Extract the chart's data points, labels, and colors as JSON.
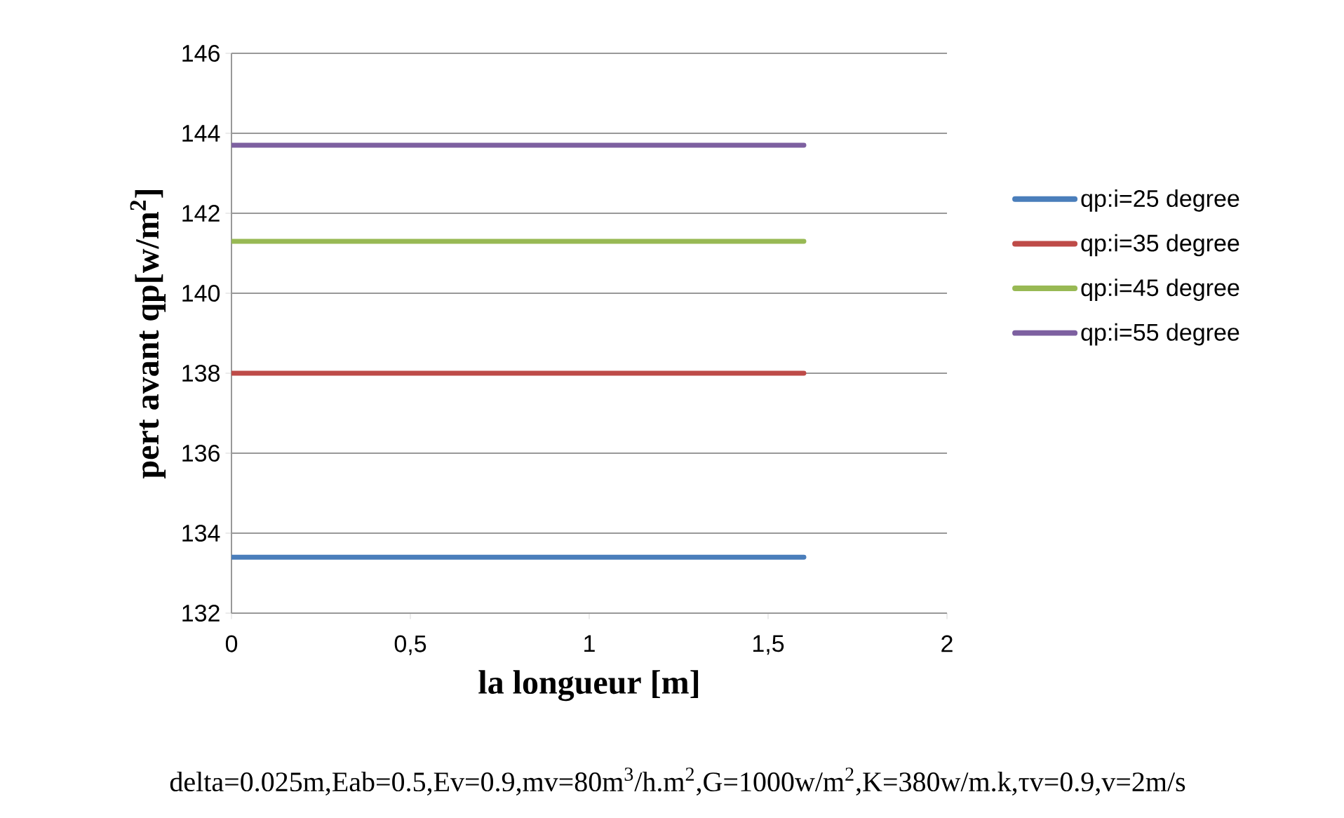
{
  "chart_data": {
    "type": "line",
    "xlabel": "la longueur [m]",
    "ylabel": "pert avant qp[w/m$^{2}$]",
    "annotations": [
      "delta=0.025m,Eab=0.5,Ev=0.9,mv=80m$^{3}$/h.m$^{2}$,G=1000w/m$^{2}$,K=380w/m.k,τv=0.9,v=2m/s"
    ],
    "x": [
      0,
      1.6
    ],
    "series": [
      {
        "name": "qp:i=25 degree",
        "color": "#4a7ebb",
        "values": [
          133.4,
          133.4
        ]
      },
      {
        "name": "qp:i=35 degree",
        "color": "#be4b48",
        "values": [
          138.0,
          138.0
        ]
      },
      {
        "name": "qp:i=45 degree",
        "color": "#98b954",
        "values": [
          141.3,
          141.3
        ]
      },
      {
        "name": "qp:i=55 degree",
        "color": "#7d60a0",
        "values": [
          143.7,
          143.7
        ]
      }
    ],
    "xlim": [
      0,
      2
    ],
    "xticks": [
      0,
      {
        "value": 0.5,
        "label": "0,5"
      },
      1,
      {
        "value": 1.5,
        "label": "1,5"
      },
      2
    ],
    "ylim": [
      132,
      146
    ],
    "yticks": [
      132,
      134,
      136,
      138,
      140,
      142,
      144,
      146
    ],
    "grid": "y",
    "legend": "right",
    "marker": "none",
    "line_style": "solid"
  }
}
